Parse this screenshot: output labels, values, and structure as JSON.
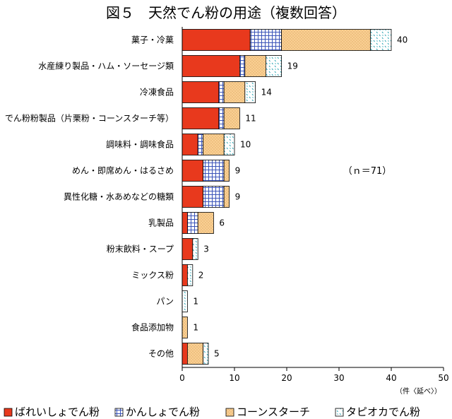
{
  "chart_data": {
    "type": "bar",
    "orientation": "horizontal",
    "stacked": true,
    "title": "図５　天然でん粉の用途（複数回答）",
    "categories": [
      "菓子・冷菓",
      "水産練り製品・ハム・ソーセージ類",
      "冷凍食品",
      "でん粉粉製品（片栗粉・コーンスターチ等）",
      "調味料・調味食品",
      "めん・即席めん・はるさめ",
      "異性化糖・水あめなどの糖類",
      "乳製品",
      "粉末飲料・スープ",
      "ミックス粉",
      "パン",
      "食品添加物",
      "その他"
    ],
    "series": [
      {
        "name": "ばれいしょでん粉",
        "color": "#e8391d",
        "pattern": "solid",
        "values": [
          13,
          11,
          7,
          7,
          3,
          4,
          4,
          1,
          2,
          1,
          0,
          0,
          1
        ]
      },
      {
        "name": "かんしょでん粉",
        "color": "#5a6fc0",
        "pattern": "grid",
        "values": [
          6,
          1,
          1,
          1,
          1,
          4,
          4,
          2,
          0,
          0,
          0,
          0,
          0
        ]
      },
      {
        "name": "コーンスターチ",
        "color": "#f7c98c",
        "pattern": "dots",
        "values": [
          17,
          4,
          4,
          3,
          4,
          1,
          1,
          3,
          0,
          0,
          0,
          1,
          3
        ]
      },
      {
        "name": "タピオカでん粉",
        "color": "#28a8b8",
        "pattern": "marks",
        "values": [
          4,
          3,
          2,
          0,
          2,
          0,
          0,
          0,
          1,
          1,
          1,
          0,
          1
        ]
      }
    ],
    "totals": [
      40,
      19,
      14,
      11,
      10,
      9,
      9,
      6,
      3,
      2,
      1,
      1,
      5
    ],
    "xlim": [
      0,
      50
    ],
    "xticks": [
      "0",
      "10",
      "20",
      "30",
      "40",
      "50"
    ],
    "annotation": "（ｎ＝71）",
    "unit_note": "（件〈延べ〉）",
    "legend_position": "bottom",
    "grid": false
  }
}
